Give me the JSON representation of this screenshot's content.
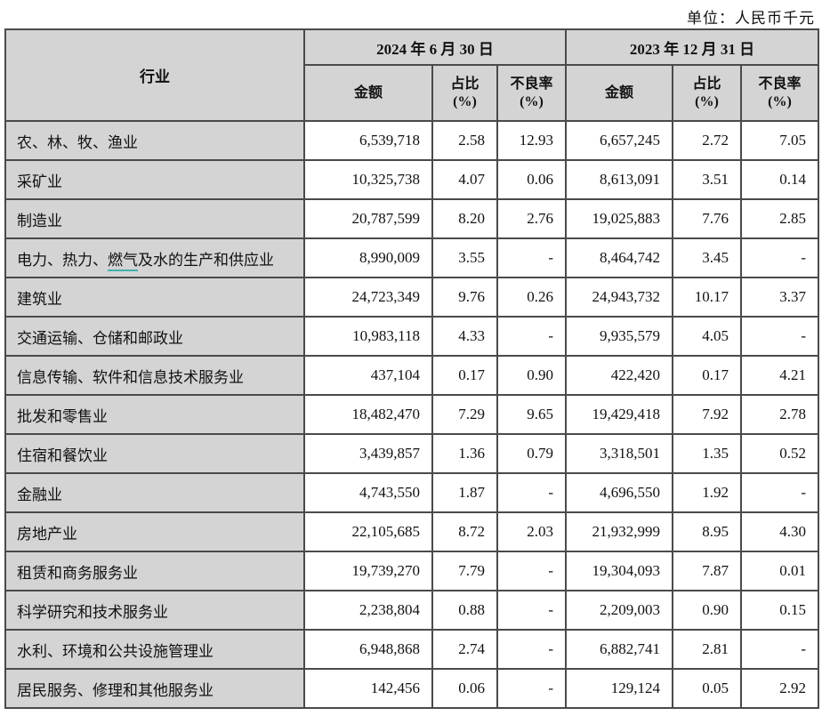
{
  "unit_label": "单位：人民币千元",
  "colors": {
    "header_fill": "#d4d4d4",
    "border": "#4a4a4a",
    "underline_teal": "#3fb0ae",
    "text": "#111111"
  },
  "table": {
    "industry_header": "行业",
    "periods": [
      "2024 年 6 月 30 日",
      "2023 年 12 月 31 日"
    ],
    "col_headers": {
      "amount": "金额",
      "share": "占比",
      "npl": "不良率",
      "pct": "(%)"
    },
    "rows": [
      {
        "industry": "农、林、牧、渔业",
        "v": [
          "6,539,718",
          "2.58",
          "12.93",
          "6,657,245",
          "2.72",
          "7.05"
        ]
      },
      {
        "industry": "采矿业",
        "v": [
          "10,325,738",
          "4.07",
          "0.06",
          "8,613,091",
          "3.51",
          "0.14"
        ]
      },
      {
        "industry": "制造业",
        "v": [
          "20,787,599",
          "8.20",
          "2.76",
          "19,025,883",
          "7.76",
          "2.85"
        ]
      },
      {
        "industry": "电力、热力、燃气及水的生产和供应业",
        "underline": "燃气",
        "v": [
          "8,990,009",
          "3.55",
          "-",
          "8,464,742",
          "3.45",
          "-"
        ]
      },
      {
        "industry": "建筑业",
        "v": [
          "24,723,349",
          "9.76",
          "0.26",
          "24,943,732",
          "10.17",
          "3.37"
        ]
      },
      {
        "industry": "交通运输、仓储和邮政业",
        "v": [
          "10,983,118",
          "4.33",
          "-",
          "9,935,579",
          "4.05",
          "-"
        ]
      },
      {
        "industry": "信息传输、软件和信息技术服务业",
        "v": [
          "437,104",
          "0.17",
          "0.90",
          "422,420",
          "0.17",
          "4.21"
        ]
      },
      {
        "industry": "批发和零售业",
        "v": [
          "18,482,470",
          "7.29",
          "9.65",
          "19,429,418",
          "7.92",
          "2.78"
        ]
      },
      {
        "industry": "住宿和餐饮业",
        "v": [
          "3,439,857",
          "1.36",
          "0.79",
          "3,318,501",
          "1.35",
          "0.52"
        ]
      },
      {
        "industry": "金融业",
        "v": [
          "4,743,550",
          "1.87",
          "-",
          "4,696,550",
          "1.92",
          "-"
        ]
      },
      {
        "industry": "房地产业",
        "v": [
          "22,105,685",
          "8.72",
          "2.03",
          "21,932,999",
          "8.95",
          "4.30"
        ]
      },
      {
        "industry": "租赁和商务服务业",
        "v": [
          "19,739,270",
          "7.79",
          "-",
          "19,304,093",
          "7.87",
          "0.01"
        ]
      },
      {
        "industry": "科学研究和技术服务业",
        "v": [
          "2,238,804",
          "0.88",
          "-",
          "2,209,003",
          "0.90",
          "0.15"
        ]
      },
      {
        "industry": "水利、环境和公共设施管理业",
        "v": [
          "6,948,868",
          "2.74",
          "-",
          "6,882,741",
          "2.81",
          "-"
        ]
      },
      {
        "industry": "居民服务、修理和其他服务业",
        "v": [
          "142,456",
          "0.06",
          "-",
          "129,124",
          "0.05",
          "2.92"
        ]
      }
    ]
  }
}
